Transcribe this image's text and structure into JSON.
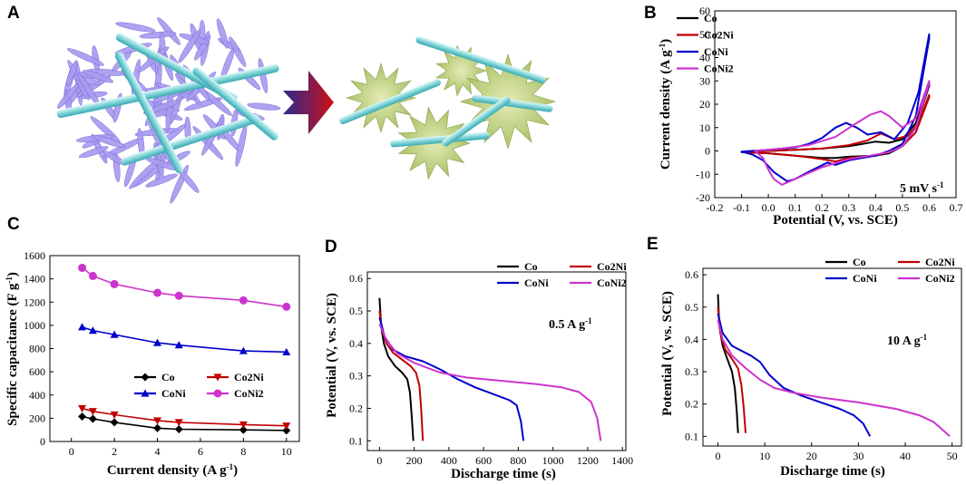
{
  "figure": {
    "panel_letters": [
      "A",
      "B",
      "C",
      "D",
      "E"
    ]
  },
  "chart_data": [
    {
      "panel": "B",
      "type": "line",
      "xlabel": "Potential (V, vs. SCE)",
      "ylabel": "Current density (A g⁻¹)",
      "annotation": "5 mV s⁻¹",
      "xlim": [
        -0.2,
        0.7
      ],
      "ylim": [
        -20,
        60
      ],
      "xticks": [
        -0.2,
        -0.1,
        0.0,
        0.1,
        0.2,
        0.3,
        0.4,
        0.5,
        0.6,
        0.7
      ],
      "yticks": [
        -20,
        -10,
        0,
        10,
        20,
        30,
        40,
        50,
        60
      ],
      "xtick_labels": [
        "-0.2",
        "-0.1",
        "0.0",
        "0.1",
        "0.2",
        "0.3",
        "0.4",
        "0.5",
        "0.6",
        "0.7"
      ],
      "ytick_labels": [
        "-20",
        "-10",
        "0",
        "10",
        "20",
        "30",
        "40",
        "50",
        "60"
      ],
      "legend_position": "top-left",
      "series": [
        {
          "name": "Co",
          "color": "#000000",
          "closed": true,
          "x": [
            -0.1,
            0.0,
            0.1,
            0.2,
            0.3,
            0.35,
            0.4,
            0.45,
            0.5,
            0.55,
            0.6,
            0.6,
            0.55,
            0.5,
            0.45,
            0.4,
            0.3,
            0.25,
            0.2,
            0.1,
            0.0,
            -0.1
          ],
          "y": [
            -0.5,
            0.0,
            0.5,
            1.0,
            2.0,
            3.0,
            4.0,
            3.5,
            5.0,
            12.0,
            29.0,
            28.0,
            10.0,
            2.0,
            -1.0,
            -2.0,
            -2.5,
            -3.0,
            -3.0,
            -2.0,
            -1.0,
            -0.5
          ]
        },
        {
          "name": "Co2Ni",
          "color": "#c00000",
          "closed": true,
          "x": [
            -0.1,
            0.0,
            0.1,
            0.2,
            0.3,
            0.37,
            0.42,
            0.47,
            0.52,
            0.56,
            0.6,
            0.6,
            0.55,
            0.5,
            0.45,
            0.4,
            0.3,
            0.25,
            0.2,
            0.1,
            0.0,
            -0.1
          ],
          "y": [
            -0.5,
            0.0,
            0.5,
            1.0,
            2.5,
            4.5,
            7.5,
            5.0,
            6.5,
            12.0,
            24.0,
            23.0,
            8.0,
            2.0,
            -0.5,
            -2.0,
            -3.0,
            -4.5,
            -3.5,
            -2.0,
            -1.0,
            -0.5
          ]
        },
        {
          "name": "CoNi",
          "color": "#0000cc",
          "closed": true,
          "x": [
            -0.1,
            0.0,
            0.1,
            0.15,
            0.2,
            0.25,
            0.29,
            0.33,
            0.37,
            0.42,
            0.47,
            0.52,
            0.56,
            0.6,
            0.6,
            0.55,
            0.5,
            0.45,
            0.4,
            0.3,
            0.25,
            0.22,
            0.15,
            0.1,
            0.07,
            0.02,
            -0.02,
            -0.06,
            -0.1
          ],
          "y": [
            -0.3,
            0.5,
            1.5,
            3.0,
            5.5,
            10.0,
            12.0,
            10.0,
            7.0,
            8.0,
            5.0,
            12.0,
            25.0,
            50.0,
            48.0,
            15.0,
            3.0,
            0.0,
            -2.0,
            -4.0,
            -6.0,
            -5.0,
            -9.0,
            -12.0,
            -13.0,
            -9.0,
            -4.0,
            -1.5,
            -0.3
          ]
        },
        {
          "name": "CoNi2",
          "color": "#cc33cc",
          "closed": true,
          "x": [
            -0.05,
            0.05,
            0.15,
            0.25,
            0.33,
            0.38,
            0.42,
            0.45,
            0.5,
            0.55,
            0.6,
            0.6,
            0.55,
            0.5,
            0.45,
            0.38,
            0.3,
            0.2,
            0.1,
            0.05,
            0.02,
            0.0,
            -0.02,
            -0.05
          ],
          "y": [
            0.0,
            1.0,
            2.5,
            6.0,
            12.0,
            15.5,
            17.0,
            15.0,
            10.0,
            14.0,
            30.0,
            29.0,
            10.0,
            2.0,
            -0.5,
            -2.0,
            -3.5,
            -7.0,
            -12.0,
            -14.5,
            -12.0,
            -8.0,
            -3.0,
            0.0
          ]
        }
      ]
    },
    {
      "panel": "C",
      "type": "line",
      "xlabel": "Current density (A g⁻¹)",
      "ylabel": "Specific capacitance (F g⁻¹)",
      "xlim": [
        -1,
        10.6
      ],
      "ylim": [
        0,
        1600
      ],
      "xticks": [
        0,
        2,
        4,
        6,
        8,
        10
      ],
      "yticks": [
        0,
        200,
        400,
        600,
        800,
        1000,
        1200,
        1400,
        1600
      ],
      "xtick_labels": [
        "0",
        "2",
        "4",
        "6",
        "8",
        "10"
      ],
      "ytick_labels": [
        "0",
        "200",
        "400",
        "600",
        "800",
        "1000",
        "1200",
        "1400",
        "1600"
      ],
      "legend_position": "center-left",
      "series": [
        {
          "name": "Co",
          "color": "#000000",
          "marker": "diamond",
          "x": [
            0.5,
            1,
            2,
            4,
            5,
            8,
            10
          ],
          "y": [
            215,
            195,
            165,
            115,
            105,
            100,
            95
          ]
        },
        {
          "name": "Co2Ni",
          "color": "#c00000",
          "marker": "triangle-down",
          "x": [
            0.5,
            1,
            2,
            4,
            5,
            8,
            10
          ],
          "y": [
            285,
            260,
            230,
            180,
            165,
            145,
            135
          ]
        },
        {
          "name": "CoNi",
          "color": "#0000cc",
          "marker": "triangle-up",
          "x": [
            0.5,
            1,
            2,
            4,
            5,
            8,
            10
          ],
          "y": [
            985,
            955,
            920,
            850,
            830,
            780,
            770
          ]
        },
        {
          "name": "CoNi2",
          "color": "#cc33cc",
          "marker": "circle",
          "x": [
            0.5,
            1,
            2,
            4,
            5,
            8,
            10
          ],
          "y": [
            1495,
            1425,
            1355,
            1280,
            1255,
            1215,
            1160
          ]
        }
      ]
    },
    {
      "panel": "D",
      "type": "line",
      "xlabel": "Discharge time (s)",
      "ylabel": "Potential (V, vs. SCE)",
      "annotation": "0.5 A g⁻¹",
      "xlim": [
        -70,
        1420
      ],
      "ylim": [
        0.07,
        0.62
      ],
      "xticks": [
        0,
        200,
        400,
        600,
        800,
        1000,
        1200,
        1400
      ],
      "yticks": [
        0.1,
        0.2,
        0.3,
        0.4,
        0.5,
        0.6
      ],
      "xtick_labels": [
        "0",
        "200",
        "400",
        "600",
        "800",
        "1000",
        "1200",
        "1400"
      ],
      "ytick_labels": [
        "0.1",
        "0.2",
        "0.3",
        "0.4",
        "0.5",
        "0.6"
      ],
      "legend_position": "top-right",
      "series": [
        {
          "name": "Co",
          "color": "#000000",
          "x": [
            0,
            10,
            25,
            50,
            90,
            130,
            160,
            175,
            185,
            195
          ],
          "y": [
            0.54,
            0.45,
            0.4,
            0.36,
            0.33,
            0.31,
            0.29,
            0.25,
            0.18,
            0.1
          ]
        },
        {
          "name": "Co2Ni",
          "color": "#c00000",
          "x": [
            0,
            15,
            40,
            80,
            130,
            180,
            210,
            230,
            240,
            250
          ],
          "y": [
            0.5,
            0.44,
            0.4,
            0.37,
            0.35,
            0.33,
            0.31,
            0.27,
            0.2,
            0.1
          ]
        },
        {
          "name": "CoNi",
          "color": "#0000cc",
          "x": [
            0,
            30,
            80,
            150,
            250,
            350,
            450,
            550,
            650,
            750,
            790,
            815,
            830
          ],
          "y": [
            0.48,
            0.42,
            0.38,
            0.36,
            0.345,
            0.32,
            0.29,
            0.265,
            0.245,
            0.225,
            0.21,
            0.16,
            0.1
          ]
        },
        {
          "name": "CoNi2",
          "color": "#cc33cc",
          "x": [
            0,
            40,
            100,
            200,
            350,
            500,
            700,
            900,
            1050,
            1150,
            1220,
            1255,
            1275
          ],
          "y": [
            0.46,
            0.41,
            0.37,
            0.34,
            0.31,
            0.295,
            0.285,
            0.275,
            0.265,
            0.25,
            0.22,
            0.17,
            0.1
          ]
        }
      ]
    },
    {
      "panel": "E",
      "type": "line",
      "xlabel": "Discharge time (s)",
      "ylabel": "Potential (V, vs. SCE)",
      "annotation": "10 A g⁻¹",
      "xlim": [
        -3.2,
        52
      ],
      "ylim": [
        0.07,
        0.62
      ],
      "xticks": [
        0,
        10,
        20,
        30,
        40,
        50
      ],
      "yticks": [
        0.1,
        0.2,
        0.3,
        0.4,
        0.5,
        0.6
      ],
      "xtick_labels": [
        "0",
        "10",
        "20",
        "30",
        "40",
        "50"
      ],
      "ytick_labels": [
        "0.1",
        "0.2",
        "0.3",
        "0.4",
        "0.5",
        "0.6"
      ],
      "legend_position": "top-right",
      "series": [
        {
          "name": "Co",
          "color": "#000000",
          "x": [
            0,
            0.3,
            1,
            2,
            3,
            3.6,
            4,
            4.3
          ],
          "y": [
            0.54,
            0.44,
            0.38,
            0.34,
            0.3,
            0.25,
            0.18,
            0.11
          ]
        },
        {
          "name": "Co2Ni",
          "color": "#c00000",
          "x": [
            0,
            0.5,
            1.5,
            3,
            4.3,
            5,
            5.5,
            5.9
          ],
          "y": [
            0.5,
            0.42,
            0.37,
            0.34,
            0.31,
            0.26,
            0.19,
            0.11
          ]
        },
        {
          "name": "CoNi",
          "color": "#0000cc",
          "x": [
            0,
            1,
            3,
            5,
            7,
            9,
            11,
            14,
            18,
            22,
            26,
            29,
            31,
            32.5
          ],
          "y": [
            0.48,
            0.42,
            0.38,
            0.365,
            0.35,
            0.33,
            0.29,
            0.25,
            0.225,
            0.205,
            0.185,
            0.165,
            0.14,
            0.1
          ]
        },
        {
          "name": "CoNi2",
          "color": "#cc33cc",
          "x": [
            0,
            1,
            3,
            6,
            9,
            12,
            16,
            22,
            30,
            38,
            43,
            46,
            48,
            49.5
          ],
          "y": [
            0.46,
            0.4,
            0.35,
            0.31,
            0.275,
            0.25,
            0.235,
            0.22,
            0.205,
            0.185,
            0.165,
            0.145,
            0.12,
            0.1
          ]
        }
      ]
    }
  ]
}
